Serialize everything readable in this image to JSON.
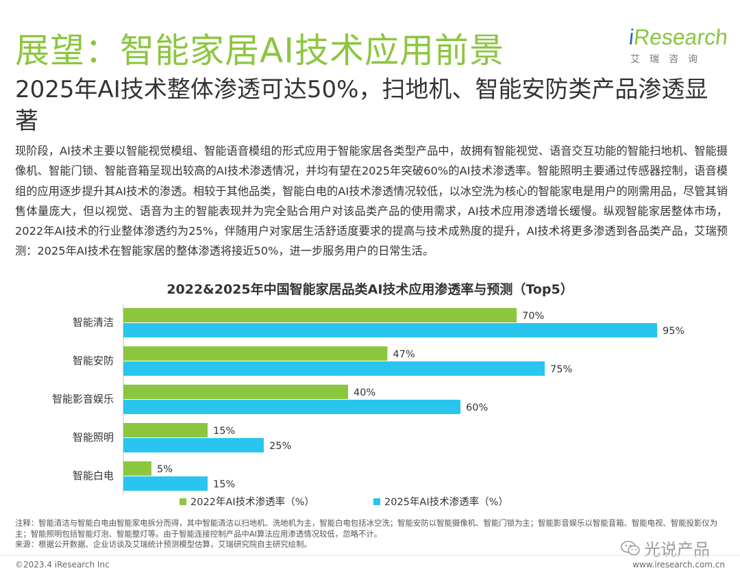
{
  "header": {
    "title": "展望：智能家居AI技术应用前景",
    "logo_text_i": "i",
    "logo_text_rest": "Research",
    "logo_subtitle": "艾瑞咨询"
  },
  "subtitle": "2025年AI技术整体渗透可达50%，扫地机、智能安防类产品渗透显著",
  "body_text": "现阶段，AI技术主要以智能视觉模组、智能语音模组的形式应用于智能家居各类型产品中，故拥有智能视觉、语音交互功能的智能扫地机、智能摄像机、智能门锁、智能音箱呈现出较高的AI技术渗透情况，并均有望在2025年突破60%的AI技术渗透率。智能照明主要通过传感器控制，语音模组的应用逐步提升其AI技术的渗透。相较于其他品类，智能白电的AI技术渗透情况较低，以冰空洗为核心的智能家电是用户的刚需用品，尽管其销售体量庞大，但以视觉、语音为主的智能表现并为完全贴合用户对该品类产品的使用需求，AI技术应用渗透增长缓慢。纵观智能家居整体市场，2022年AI技术的行业整体渗透约为25%，伴随用户对家居生活舒适度要求的提高与技术成熟度的提升，AI技术将更多渗透到各品类产品，艾瑞预测：2025年AI技术在智能家居的整体渗透将接近50%，进一步服务用户的日常生活。",
  "chart_data": {
    "type": "bar",
    "orientation": "horizontal",
    "title": "2022&2025年中国智能家居品类AI技术应用渗透率与预测（Top5）",
    "categories": [
      "智能清洁",
      "智能安防",
      "智能影音娱乐",
      "智能照明",
      "智能白电"
    ],
    "series": [
      {
        "name": "2022年AI技术渗透率（%）",
        "values": [
          70,
          47,
          40,
          15,
          5
        ],
        "color": "#8cc63f"
      },
      {
        "name": "2025年AI技术渗透率（%）",
        "values": [
          95,
          75,
          60,
          25,
          15
        ],
        "color": "#29c5ee"
      }
    ],
    "value_suffix": "%",
    "xlim": [
      0,
      100
    ],
    "legend_position": "bottom"
  },
  "notes": {
    "note": "注释：智能清洁与智能白电由智能家电拆分而得，其中智能清洁以扫地机、洗地机为主，智能白电包括冰空洗；智能安防以智能摄像机、智能门锁为主；智能影音娱乐以智能音箱、智能电视、智能投影仪为主；智能照明包括智能灯泡、智能整灯等。由于智能连接控制产品中AI算法应用渗透情况较低，忽略不计。",
    "source": "来源：根据公开数据、企业访谈及艾瑞统计预测模型估算，艾瑞研究院自主研究绘制。"
  },
  "footer": {
    "copyright": "©2023.4 iResearch Inc",
    "website": "www.iresearch.com.cn",
    "watermark": "光说产品"
  },
  "colors": {
    "accent_green": "#8cc63f",
    "accent_blue": "#29c5ee",
    "logo_blue": "#1f6fb4"
  }
}
